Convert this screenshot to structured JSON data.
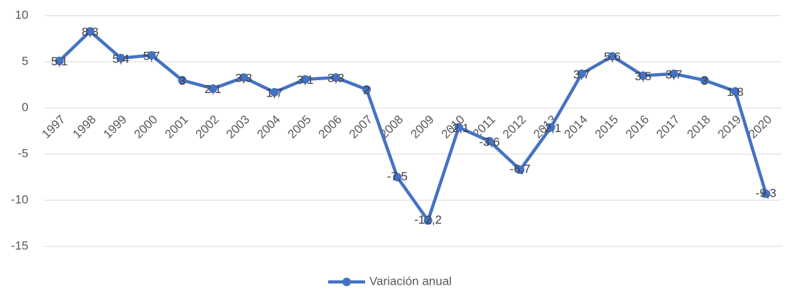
{
  "chart_data": {
    "type": "line",
    "categories": [
      "1997",
      "1998",
      "1999",
      "2000",
      "2001",
      "2002",
      "2003",
      "2004",
      "2005",
      "2006",
      "2007",
      "2008",
      "2009",
      "2010",
      "2011",
      "2012",
      "2013",
      "2014",
      "2015",
      "2016",
      "2017",
      "2018",
      "2019",
      "2020"
    ],
    "series": [
      {
        "name": "Variación anual",
        "color": "#4472c4",
        "values": [
          5.1,
          8.3,
          5.4,
          5.7,
          3,
          2.1,
          3.3,
          1.7,
          3.1,
          3.3,
          2,
          -7.5,
          -12.2,
          -2.1,
          -3.6,
          -6.7,
          -2.1,
          3.7,
          5.6,
          3.5,
          3.7,
          3,
          1.8,
          -9.3
        ],
        "value_labels": [
          "5,1",
          "8,3",
          "5,4",
          "5,7",
          "3",
          "2,1",
          "3,3",
          "1,7",
          "3,1",
          "3,3",
          "2",
          "-7,5",
          "-12,2",
          "-2,1",
          "-3,6",
          "-6,7",
          "-2,1",
          "3,7",
          "5,6",
          "3,5",
          "3,7",
          "3",
          "1,8",
          "-9,3"
        ]
      }
    ],
    "ylim": [
      -15,
      10
    ],
    "yticks": [
      10,
      5,
      0,
      -5,
      -10,
      -15
    ],
    "grid": true,
    "legend": "bottom"
  }
}
